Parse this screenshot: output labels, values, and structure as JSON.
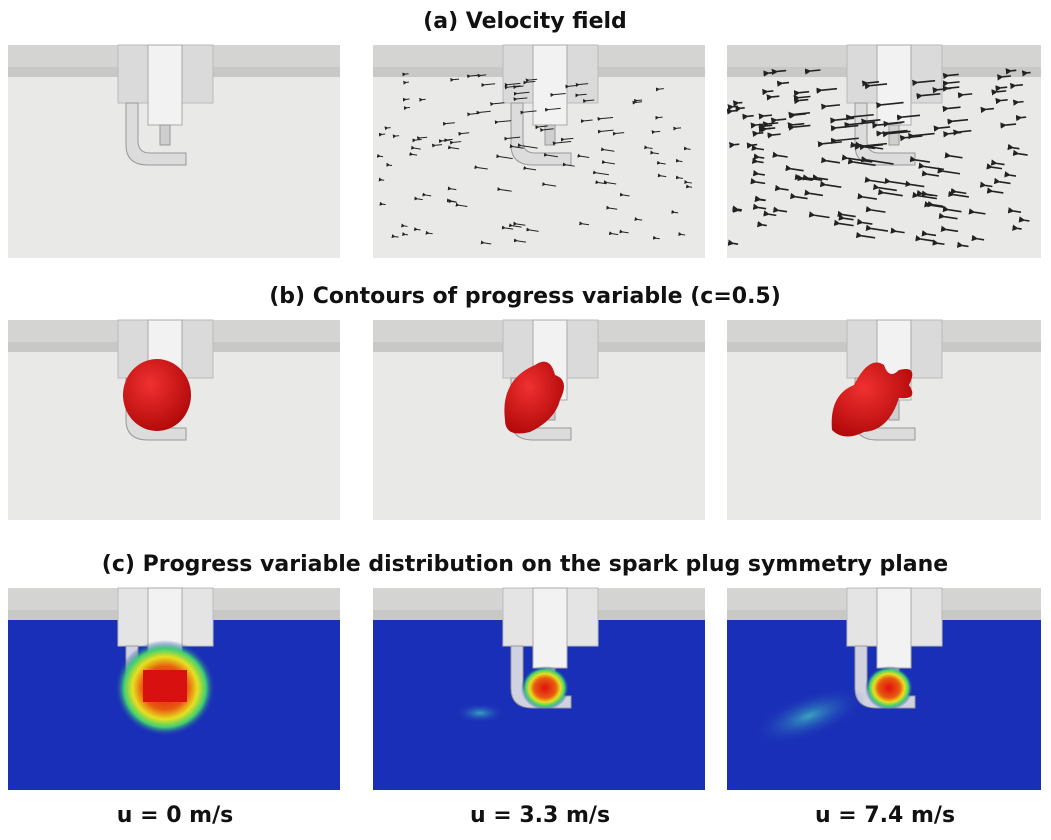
{
  "sections": [
    {
      "title": "(a) Velocity field"
    },
    {
      "title": "(b) Contours of progress variable (c=0.5)"
    },
    {
      "title": "(c) Progress variable distribution on the spark plug symmetry plane"
    }
  ],
  "columns": [
    "u = 0 m/s",
    "u = 3.3 m/s",
    "u = 7.4 m/s"
  ]
}
